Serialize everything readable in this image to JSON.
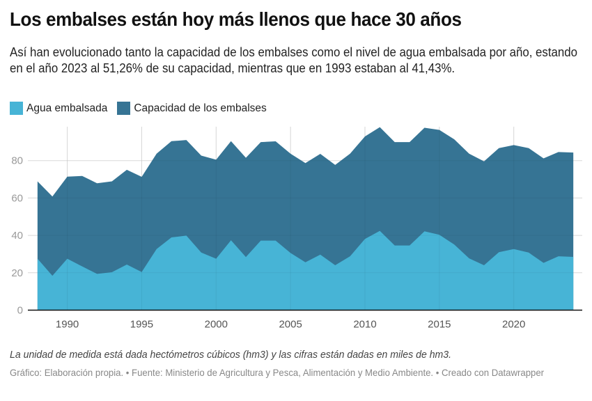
{
  "header": {
    "title": "Los embalses están hoy más llenos que hace 30 años",
    "subtitle": "Así han evolucionado tanto la capacidad de los embalses como el nivel de agua embalsada por año, estando en el año 2023 al 51,26% de su capacidad, mientras que en 1993 estaban al 41,43%."
  },
  "legend": [
    {
      "label": "Agua embalsada",
      "color": "#47b4d6"
    },
    {
      "label": "Capacidad de los embalses",
      "color": "#367494"
    }
  ],
  "footer": {
    "note": "La unidad de medida está dada hectómetros cúbicos (hm3) y las cifras están dadas en miles de hm3.",
    "credits": "Gráfico: Elaboración propia. • Fuente: Ministerio de Agricultura y Pesca, Alimentación y Medio Ambiente. • Creado con Datawrapper"
  },
  "chart_data": {
    "type": "area",
    "title": "Los embalses están hoy más llenos que hace 30 años",
    "xlabel": "",
    "ylabel": "",
    "x": [
      1988,
      1989,
      1990,
      1991,
      1992,
      1993,
      1994,
      1995,
      1996,
      1997,
      1998,
      1999,
      2000,
      2001,
      2002,
      2003,
      2004,
      2005,
      2006,
      2007,
      2008,
      2009,
      2010,
      2011,
      2012,
      2013,
      2014,
      2015,
      2016,
      2017,
      2018,
      2019,
      2020,
      2021,
      2022,
      2023,
      2024
    ],
    "series": [
      {
        "name": "Capacidad de los embalses",
        "color": "#367494",
        "values": [
          68.9,
          60.8,
          71.4,
          71.8,
          67.9,
          68.9,
          75.1,
          71.3,
          83.7,
          90.4,
          91.0,
          82.7,
          80.5,
          90.4,
          81.5,
          89.9,
          90.3,
          83.7,
          78.7,
          83.6,
          77.7,
          83.7,
          92.9,
          97.9,
          89.9,
          89.9,
          97.6,
          96.4,
          91.4,
          83.7,
          79.6,
          86.7,
          88.3,
          86.7,
          81.2,
          84.6,
          84.3
        ]
      },
      {
        "name": "Agua embalsada",
        "color": "#47b4d6",
        "values": [
          27.5,
          18.4,
          27.5,
          23.4,
          19.4,
          20.3,
          24.4,
          20.4,
          32.7,
          38.9,
          39.9,
          30.8,
          27.5,
          37.4,
          28.4,
          37.2,
          37.2,
          30.6,
          25.6,
          29.7,
          24.0,
          28.8,
          38.1,
          42.4,
          34.6,
          34.6,
          42.2,
          40.3,
          35.1,
          27.7,
          24.0,
          31.0,
          32.7,
          30.8,
          25.3,
          28.8,
          28.5
        ]
      }
    ],
    "xticks": [
      1990,
      1995,
      2000,
      2005,
      2010,
      2015,
      2020
    ],
    "yticks": [
      0,
      20,
      40,
      60,
      80
    ],
    "xlim": [
      1986.1,
      2024.8
    ],
    "ylim": [
      0,
      100
    ],
    "grid": true,
    "legend_position": "top-left"
  }
}
